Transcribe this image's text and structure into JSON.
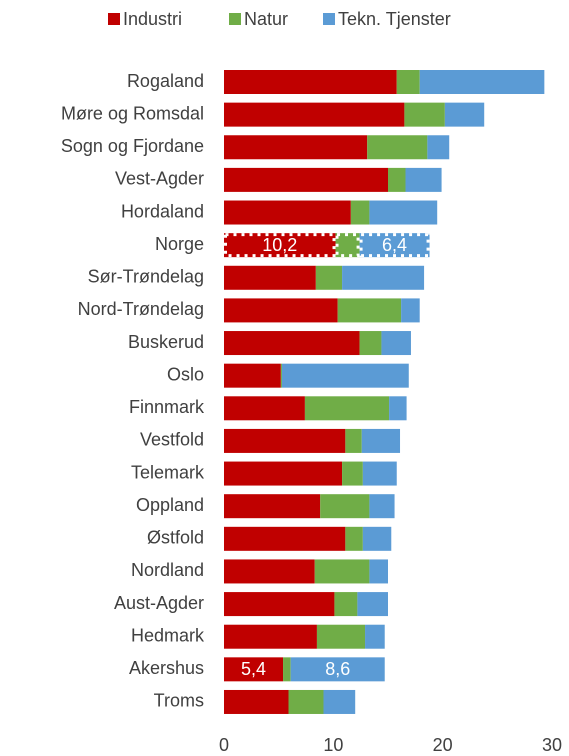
{
  "chart_data": {
    "type": "stacked_barh",
    "categories": [
      "Rogaland",
      "Møre og Romsdal",
      "Sogn og Fjordane",
      "Vest-Agder",
      "Hordaland",
      "Norge",
      "Sør-Trøndelag",
      "Nord-Trøndelag",
      "Buskerud",
      "Oslo",
      "Finnmark",
      "Vestfold",
      "Telemark",
      "Oppland",
      "Østfold",
      "Nordland",
      "Aust-Agder",
      "Hedmark",
      "Akershus",
      "Troms"
    ],
    "series": [
      {
        "name": "Industri",
        "color": "#c00000",
        "values": [
          15.8,
          16.5,
          13.1,
          15.0,
          11.6,
          10.2,
          8.4,
          10.4,
          12.4,
          5.2,
          7.4,
          11.1,
          10.8,
          8.8,
          11.1,
          8.3,
          10.1,
          8.5,
          5.4,
          5.9
        ],
        "value_labels": [
          null,
          null,
          null,
          null,
          null,
          "10,2",
          null,
          null,
          null,
          null,
          null,
          null,
          null,
          null,
          null,
          null,
          null,
          null,
          "5,4",
          null
        ]
      },
      {
        "name": "Natur",
        "color": "#70ad47",
        "values": [
          2.1,
          3.7,
          5.5,
          1.6,
          1.7,
          2.2,
          2.4,
          5.8,
          2.0,
          0.1,
          7.7,
          1.5,
          1.9,
          4.5,
          1.6,
          5.0,
          2.1,
          4.4,
          0.7,
          3.2
        ]
      },
      {
        "name": "Tekn. Tjenster",
        "color": "#5b9bd5",
        "values": [
          11.4,
          3.6,
          2.0,
          3.3,
          6.2,
          6.4,
          7.5,
          1.7,
          2.7,
          11.6,
          1.6,
          3.5,
          3.1,
          2.3,
          2.6,
          1.7,
          2.8,
          1.8,
          8.6,
          2.9
        ],
        "value_labels": [
          null,
          null,
          null,
          null,
          null,
          "6,4",
          null,
          null,
          null,
          null,
          null,
          null,
          null,
          null,
          null,
          null,
          null,
          null,
          "8,6",
          null
        ]
      }
    ],
    "xlim": [
      0,
      30
    ],
    "xticks": [
      0,
      10,
      20,
      30
    ],
    "legend": "top"
  }
}
